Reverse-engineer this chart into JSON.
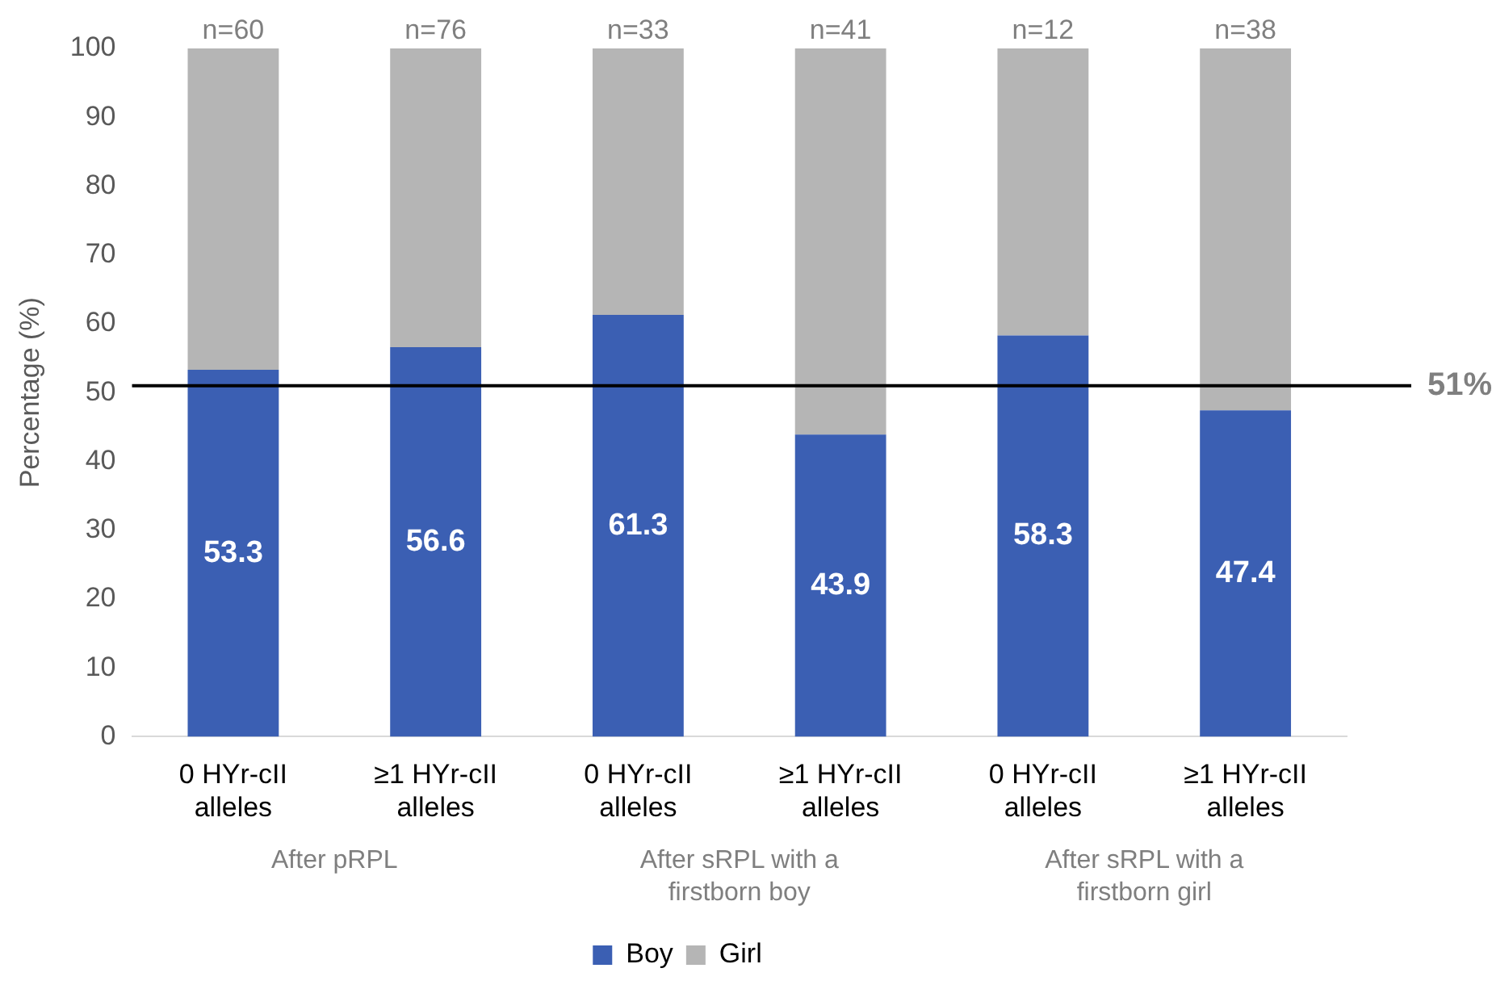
{
  "chart_data": {
    "type": "bar",
    "stacked": true,
    "ylabel": "Percentage (%)",
    "categories": [
      "0 HYr-cII alleles",
      "≥1 HYr-cII alleles",
      "0 HYr-cII alleles",
      "≥1 HYr-cII alleles",
      "0 HYr-cII alleles",
      "≥1 HYr-cII alleles"
    ],
    "series": [
      {
        "name": "Boy",
        "color": "#3b5fb3",
        "values": [
          53.3,
          56.6,
          61.3,
          43.9,
          58.3,
          47.4
        ],
        "value_labels": [
          "53.3",
          "56.6",
          "61.3",
          "43.9",
          "58.3",
          "47.4"
        ]
      },
      {
        "name": "Girl",
        "color": "#b5b5b5",
        "values": [
          46.7,
          43.4,
          38.7,
          56.1,
          41.7,
          52.6
        ]
      }
    ],
    "ylim": [
      0,
      100
    ],
    "yticks": [
      0,
      10,
      20,
      30,
      40,
      50,
      60,
      70,
      80,
      90,
      100
    ],
    "grid": false,
    "legend": "bottom",
    "ref_lines": [
      {
        "axis": "y",
        "value": 51,
        "label": "51%",
        "color": "#000000"
      }
    ],
    "annotations": [
      "n=60",
      "n=76",
      "n=33",
      "n=41",
      "n=12",
      "n=38",
      "After pRPL",
      "After sRPL with a firstborn boy",
      "After sRPL with a firstborn girl"
    ]
  }
}
